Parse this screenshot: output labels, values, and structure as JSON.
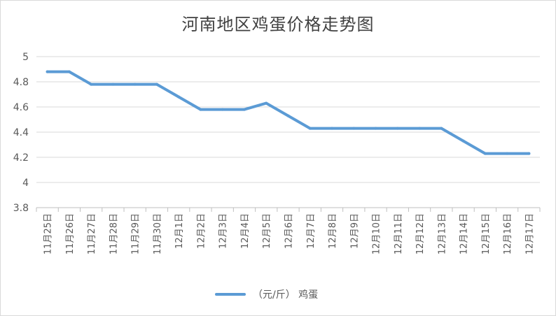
{
  "chart_data": {
    "type": "line",
    "title": "河南地区鸡蛋价格走势图",
    "xlabel": "",
    "ylabel": "",
    "categories": [
      "11月25日",
      "11月26日",
      "11月27日",
      "11月28日",
      "11月29日",
      "11月30日",
      "12月1日",
      "12月2日",
      "12月3日",
      "12月4日",
      "12月5日",
      "12月6日",
      "12月7日",
      "12月8日",
      "12月9日",
      "12月10日",
      "12月11日",
      "12月12日",
      "12月13日",
      "12月14日",
      "12月15日",
      "12月16日",
      "12月17日"
    ],
    "series": [
      {
        "name": "（元/斤） 鸡蛋",
        "values": [
          4.88,
          4.88,
          4.78,
          4.78,
          4.78,
          4.78,
          4.68,
          4.58,
          4.58,
          4.58,
          4.63,
          4.53,
          4.43,
          4.43,
          4.43,
          4.43,
          4.43,
          4.43,
          4.43,
          4.33,
          4.23,
          4.23,
          4.23
        ],
        "color": "#5b9bd5"
      }
    ],
    "ylim": [
      3.8,
      5
    ],
    "yticks": [
      "3.8",
      "4",
      "4.2",
      "4.4",
      "4.6",
      "4.8",
      "5"
    ],
    "grid": true,
    "legend_position": "bottom"
  }
}
